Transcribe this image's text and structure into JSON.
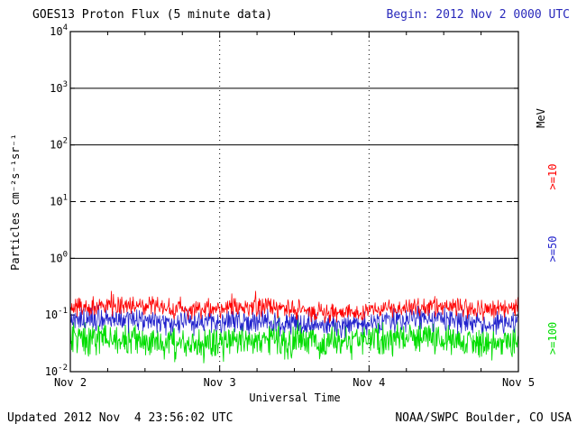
{
  "header": {
    "title": "GOES13 Proton Flux (5 minute data)",
    "begin": "Begin: 2012 Nov 2 0000 UTC"
  },
  "footer": {
    "updated": "Updated 2012 Nov  4 23:56:02 UTC",
    "credit": "NOAA/SWPC Boulder, CO USA"
  },
  "right_labels": {
    "unit": "MeV",
    "s10": ">=10",
    "s50": ">=50",
    "s100": ">=100"
  },
  "colors": {
    "ge10": "#ff0000",
    "ge50": "#2222cc",
    "ge100": "#00dd00",
    "begin_text": "#2929bb",
    "axis": "#000000"
  },
  "chart_data": {
    "type": "line",
    "title": "GOES13 Proton Flux (5 minute data)",
    "xlabel": "Universal Time",
    "ylabel": "Particles cm⁻²s⁻¹sr⁻¹",
    "x_ticks": [
      "Nov 2",
      "Nov 3",
      "Nov 4",
      "Nov 5"
    ],
    "x_range_days": 3,
    "cadence_minutes": 5,
    "y_scale": "log",
    "ylim": [
      0.01,
      10000
    ],
    "y_tick_exponents": [
      4,
      3,
      2,
      1,
      0,
      -1,
      -2
    ],
    "solid_gridlines": [
      1000,
      100,
      1
    ],
    "dashed_gridlines": [
      10
    ],
    "vertical_dotted_gridlines_at": [
      "Nov 3",
      "Nov 4"
    ],
    "legend_position": "right-rotated",
    "series": [
      {
        "name": ">=10 MeV",
        "color": "#ff0000",
        "mean_flux": 0.13,
        "min_flux": 0.06,
        "max_flux": 0.35
      },
      {
        "name": ">=50 MeV",
        "color": "#2222cc",
        "mean_flux": 0.075,
        "min_flux": 0.03,
        "max_flux": 0.16
      },
      {
        "name": ">=100 MeV",
        "color": "#00dd00",
        "mean_flux": 0.035,
        "min_flux": 0.012,
        "max_flux": 0.09
      }
    ]
  }
}
